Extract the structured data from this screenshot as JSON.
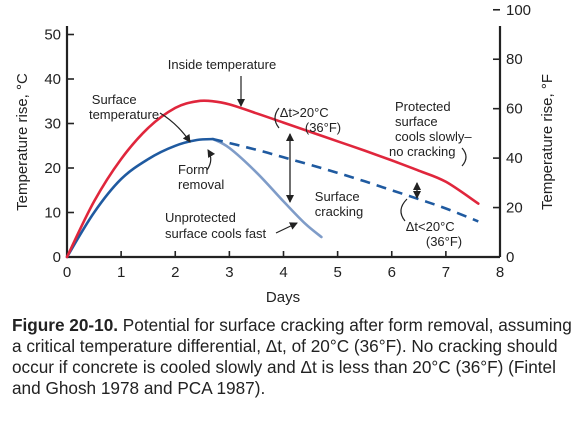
{
  "chart_data": {
    "type": "line",
    "xlabel": "Days",
    "ylabel_left": "Temperature rise, °C",
    "ylabel_right": "Temperature rise, °F",
    "xlim": [
      0,
      8
    ],
    "ylim_left": [
      0,
      52
    ],
    "ylim_right_f": [
      0,
      100
    ],
    "x_ticks": [
      0,
      1,
      2,
      3,
      4,
      5,
      6,
      7,
      8
    ],
    "y_ticks_left": [
      0,
      10,
      20,
      30,
      40,
      50
    ],
    "y_ticks_right": [
      0,
      20,
      40,
      60,
      80,
      100
    ],
    "grid": false,
    "colors": {
      "inside": "#e0263c",
      "surface": "#1f5aa0",
      "unprotected": "#7f9cc8"
    },
    "series": [
      {
        "name": "Inside temperature",
        "style": "solid",
        "color": "#e0263c",
        "x": [
          0,
          0.5,
          1.0,
          1.5,
          2.0,
          2.4,
          2.7,
          3.0,
          3.5,
          4.0,
          4.5,
          5.0,
          5.5,
          6.0,
          6.5,
          7.0,
          7.6
        ],
        "y": [
          0,
          12.5,
          22,
          29,
          33.5,
          35,
          35,
          34.3,
          32.3,
          30.2,
          28.1,
          26,
          23.9,
          21.7,
          19.4,
          16.9,
          12
        ]
      },
      {
        "name": "Surface temperature",
        "style": "solid",
        "color": "#1f5aa0",
        "x": [
          0,
          0.5,
          1.0,
          1.5,
          2.0,
          2.4,
          2.7
        ],
        "y": [
          0,
          10,
          17.5,
          22,
          25,
          26.3,
          26.5
        ]
      },
      {
        "name": "Protected surface cools slowly",
        "style": "dashed",
        "color": "#1f5aa0",
        "x": [
          2.7,
          3.5,
          4.0,
          4.5,
          5.0,
          5.5,
          6.0,
          6.5,
          7.0,
          7.6
        ],
        "y": [
          26.5,
          24.1,
          22.4,
          20.7,
          18.9,
          17,
          15,
          13,
          10.9,
          8
        ]
      },
      {
        "name": "Unprotected surface cools fast",
        "style": "solid",
        "color": "#7f9cc8",
        "x": [
          2.7,
          3.0,
          3.5,
          4.0,
          4.4,
          4.7
        ],
        "y": [
          26.5,
          24.5,
          19,
          12.5,
          7.5,
          4.5
        ]
      }
    ],
    "annotations": {
      "inside_temperature": "Inside temperature",
      "surface_temperature": [
        "Surface",
        "temperature"
      ],
      "form_removal": [
        "Form",
        "removal"
      ],
      "unprotected": [
        "Unprotected",
        "surface cools fast"
      ],
      "dt_gt": [
        "Δt>20°C",
        "(36°F)"
      ],
      "surface_cracking": [
        "Surface",
        "cracking"
      ],
      "protected": [
        "Protected",
        "surface",
        "cools slowly–",
        "no cracking"
      ],
      "dt_lt": [
        "Δt<20°C",
        "(36°F)"
      ]
    }
  },
  "caption": {
    "label": "Figure 20-10.",
    "text": " Potential for surface cracking after form removal, assuming a critical temperature differential, Δt, of 20°C (36°F). No cracking should occur if concrete is cooled slowly and Δt is less than 20°C (36°F) (Fintel and Ghosh 1978 and PCA 1987)."
  }
}
